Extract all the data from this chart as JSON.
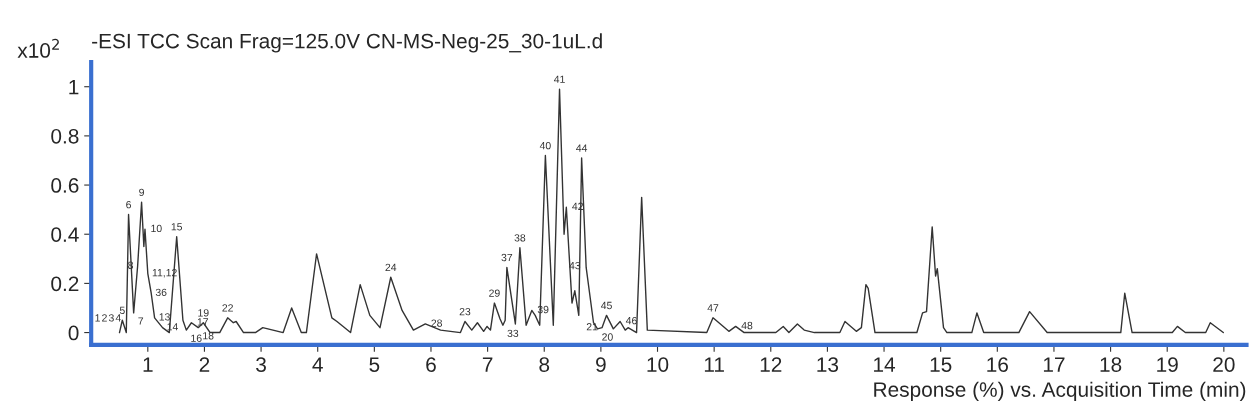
{
  "chart_data": {
    "type": "line",
    "title": "-ESI TCC Scan Frag=125.0V CN-MS-Neg-25_30-1uL.d",
    "xlabel": "Response (%) vs. Acquisition Time (min)",
    "ylabel": "x10$^{2}$",
    "xlim": [
      0,
      20.4
    ],
    "ylim": [
      -0.05,
      1.1
    ],
    "xticks": [
      1,
      2,
      3,
      4,
      5,
      6,
      7,
      8,
      9,
      10,
      11,
      12,
      13,
      14,
      15,
      16,
      17,
      18,
      19,
      20
    ],
    "yticks": [
      0,
      0.2,
      0.4,
      0.6,
      0.8,
      1
    ],
    "grid": false,
    "marker": "none",
    "line_style": "solid",
    "series": [
      {
        "color": "#333333",
        "x": [
          0.5,
          0.55,
          0.62,
          0.66,
          0.75,
          0.82,
          0.89,
          0.93,
          0.95,
          1.0,
          1.06,
          1.12,
          1.26,
          1.38,
          1.51,
          1.62,
          1.68,
          1.77,
          1.89,
          1.98,
          2.1,
          2.27,
          2.41,
          2.51,
          2.56,
          2.69,
          2.9,
          3.03,
          3.39,
          3.54,
          3.71,
          3.8,
          3.98,
          4.25,
          4.34,
          4.58,
          4.75,
          4.92,
          5.1,
          5.29,
          5.49,
          5.69,
          5.9,
          6.17,
          6.52,
          6.6,
          6.72,
          6.82,
          6.93,
          6.99,
          7.05,
          7.12,
          7.22,
          7.27,
          7.31,
          7.34,
          7.49,
          7.57,
          7.68,
          7.78,
          7.84,
          7.92,
          8.02,
          8.16,
          8.27,
          8.35,
          8.39,
          8.49,
          8.54,
          8.61,
          8.66,
          8.74,
          8.87,
          8.94,
          9.02,
          9.1,
          9.22,
          9.34,
          9.43,
          9.48,
          9.63,
          9.72,
          9.82,
          10.87,
          10.98,
          11.26,
          11.38,
          11.53,
          12.09,
          12.22,
          12.32,
          12.47,
          12.59,
          12.77,
          13.22,
          13.31,
          13.51,
          13.6,
          13.68,
          13.72,
          13.84,
          14.58,
          14.68,
          14.75,
          14.85,
          14.91,
          14.94,
          15.05,
          15.11,
          15.55,
          15.64,
          15.76,
          16.38,
          16.57,
          16.88,
          18.18,
          18.25,
          18.38,
          19.09,
          19.18,
          19.32,
          19.68,
          19.76,
          19.99
        ],
        "values": [
          0,
          0.05,
          0,
          0.48,
          0.08,
          0.27,
          0.53,
          0.35,
          0.42,
          0.24,
          0.16,
          0.06,
          0.02,
          0,
          0.39,
          0.05,
          0.01,
          0.04,
          0.02,
          0.04,
          0,
          0,
          0.06,
          0.04,
          0.045,
          0,
          0,
          0.02,
          0,
          0.1,
          0,
          0,
          0.32,
          0.06,
          0.045,
          0,
          0.195,
          0.07,
          0.02,
          0.225,
          0.09,
          0.01,
          0.035,
          0.01,
          0,
          0.045,
          0.01,
          0.04,
          0.005,
          0.025,
          0.01,
          0.12,
          0.055,
          0.03,
          0.05,
          0.265,
          0.035,
          0.345,
          0.03,
          0.09,
          0.07,
          0.03,
          0.72,
          0.03,
          0.99,
          0.4,
          0.51,
          0.12,
          0.17,
          0.07,
          0.71,
          0.265,
          0.04,
          0.015,
          0.02,
          0.07,
          0.015,
          0.045,
          0.01,
          0.02,
          0,
          0.55,
          0.01,
          0,
          0.06,
          0.005,
          0.025,
          0,
          0,
          0.025,
          0,
          0.035,
          0.01,
          0,
          0,
          0.045,
          0.005,
          0.02,
          0.195,
          0.18,
          0,
          0,
          0.08,
          0.085,
          0.43,
          0.23,
          0.26,
          0.02,
          0,
          0,
          0.08,
          0,
          0,
          0.085,
          0,
          0,
          0.16,
          0,
          0,
          0.025,
          0,
          0,
          0.04,
          0
        ]
      }
    ],
    "annotations": [
      "1",
      "2",
      "3",
      "4",
      {
        "text": "5",
        "x": 0.55,
        "y": 0.05
      },
      {
        "text": "6",
        "x": 0.66,
        "y": 0.48
      },
      {
        "text": "7",
        "x": 0.75,
        "y": 0.08
      },
      {
        "text": "8",
        "x": 0.82,
        "y": 0.27
      },
      {
        "text": "9",
        "x": 0.89,
        "y": 0.53
      },
      {
        "text": "10",
        "x": 0.95,
        "y": 0.42
      },
      {
        "text": "11,12",
        "x": 1.0,
        "y": 0.24
      },
      {
        "text": "36",
        "x": 1.06,
        "y": 0.16
      },
      {
        "text": "13",
        "x": 1.12,
        "y": 0.06
      },
      {
        "text": "14",
        "x": 1.26,
        "y": 0.02
      },
      {
        "text": "15",
        "x": 1.51,
        "y": 0.39
      },
      {
        "text": "16",
        "x": 1.68,
        "y": 0.01
      },
      {
        "text": "17",
        "x": 1.77,
        "y": 0.04
      },
      {
        "text": "18",
        "x": 1.89,
        "y": 0.02
      },
      {
        "text": "19",
        "x": 1.98,
        "y": 0.04
      },
      {
        "text": "22",
        "x": 2.41,
        "y": 0.06
      },
      {
        "text": "24",
        "x": 5.29,
        "y": 0.225
      },
      {
        "text": "28",
        "x": 5.9,
        "y": 0.035
      },
      {
        "text": "23",
        "x": 6.6,
        "y": 0.045
      },
      {
        "text": "29",
        "x": 7.12,
        "y": 0.12
      },
      {
        "text": "33",
        "x": 7.27,
        "y": 0.03
      },
      {
        "text": "37",
        "x": 7.34,
        "y": 0.265
      },
      {
        "text": "38",
        "x": 7.57,
        "y": 0.345
      },
      {
        "text": "39",
        "x": 7.78,
        "y": 0.09
      },
      {
        "text": "40",
        "x": 8.02,
        "y": 0.72
      },
      {
        "text": "41",
        "x": 8.27,
        "y": 0.99
      },
      {
        "text": "42",
        "x": 8.39,
        "y": 0.51
      },
      {
        "text": "43",
        "x": 8.54,
        "y": 0.17
      },
      {
        "text": "44",
        "x": 8.66,
        "y": 0.71
      },
      {
        "text": "20",
        "x": 8.94,
        "y": 0.015
      },
      {
        "text": "21",
        "x": 9.02,
        "y": 0.02
      },
      {
        "text": "45",
        "x": 9.1,
        "y": 0.07
      },
      {
        "text": "46",
        "x": 9.34,
        "y": 0.045
      },
      {
        "text": "47",
        "x": 10.98,
        "y": 0.06
      },
      {
        "text": "48",
        "x": 11.38,
        "y": 0.025
      }
    ]
  }
}
